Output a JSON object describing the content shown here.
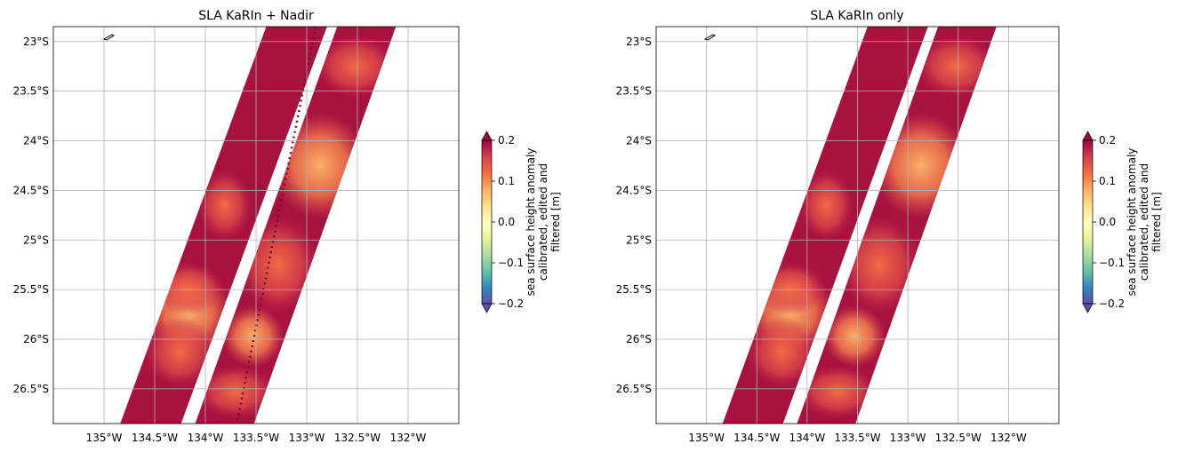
{
  "chart_data": [
    {
      "type": "heatmap",
      "title": "SLA KaRIn + Nadir",
      "x_ticks": [
        "135°W",
        "134.5°W",
        "134°W",
        "133.5°W",
        "133°W",
        "132.5°W",
        "132°W"
      ],
      "y_ticks": [
        "23°S",
        "23.5°S",
        "24°S",
        "24.5°S",
        "25°S",
        "25.5°S",
        "26°S",
        "26.5°S"
      ],
      "x_tick_values": [
        -135,
        -134.5,
        -134,
        -133.5,
        -133,
        -132.5,
        -132
      ],
      "y_tick_values": [
        -23,
        -23.5,
        -24,
        -24.5,
        -25,
        -25.5,
        -26,
        -26.5
      ],
      "xlim": [
        -135.5,
        -131.5
      ],
      "ylim": [
        -26.85,
        -22.85
      ],
      "grid": true,
      "swaths": [
        {
          "name": "left",
          "lon_top": -133.4,
          "lon_bottom": -134.84,
          "width_deg": 0.6
        },
        {
          "name": "right",
          "lon_top": -132.7,
          "lon_bottom": -134.1,
          "width_deg": 0.58
        }
      ],
      "nadir": {
        "lon_top": -132.91,
        "lon_bottom": -133.69
      },
      "colorbar": {
        "label_lines": [
          "sea surface height anomaly",
          "calibrated, edited and",
          "filtered [m]"
        ],
        "ticks": [
          "0.2",
          "0.1",
          "0.0",
          "−0.1",
          "−0.2"
        ],
        "tick_values": [
          0.2,
          0.1,
          0.0,
          -0.1,
          -0.2
        ],
        "vmin": -0.2,
        "vmax": 0.2,
        "extend": "both",
        "colormap": "Spectral_r"
      }
    },
    {
      "type": "heatmap",
      "title": "SLA KaRIn only",
      "x_ticks": [
        "135°W",
        "134.5°W",
        "134°W",
        "133.5°W",
        "133°W",
        "132.5°W",
        "132°W"
      ],
      "y_ticks": [
        "23°S",
        "23.5°S",
        "24°S",
        "24.5°S",
        "25°S",
        "25.5°S",
        "26°S",
        "26.5°S"
      ],
      "x_tick_values": [
        -135,
        -134.5,
        -134,
        -133.5,
        -133,
        -132.5,
        -132
      ],
      "y_tick_values": [
        -23,
        -23.5,
        -24,
        -24.5,
        -25,
        -25.5,
        -26,
        -26.5
      ],
      "xlim": [
        -135.5,
        -131.5
      ],
      "ylim": [
        -26.85,
        -22.85
      ],
      "grid": true,
      "swaths": [
        {
          "name": "left",
          "lon_top": -133.4,
          "lon_bottom": -134.84,
          "width_deg": 0.6
        },
        {
          "name": "right",
          "lon_top": -132.7,
          "lon_bottom": -134.1,
          "width_deg": 0.58
        }
      ],
      "nadir": null,
      "colorbar": {
        "label_lines": [
          "sea surface height anomaly",
          "calibrated, edited and",
          "filtered [m]"
        ],
        "ticks": [
          "0.2",
          "0.1",
          "0.0",
          "−0.1",
          "−0.2"
        ],
        "tick_values": [
          0.2,
          0.1,
          0.0,
          -0.1,
          -0.2
        ],
        "vmin": -0.2,
        "vmax": 0.2,
        "extend": "both",
        "colormap": "Spectral_r"
      }
    }
  ],
  "colors": {
    "high": "#a8123f",
    "mid_high": "#d8434b",
    "mid": "#f07a4a",
    "light": "#fdae61",
    "grid": "#b0b0b0"
  }
}
